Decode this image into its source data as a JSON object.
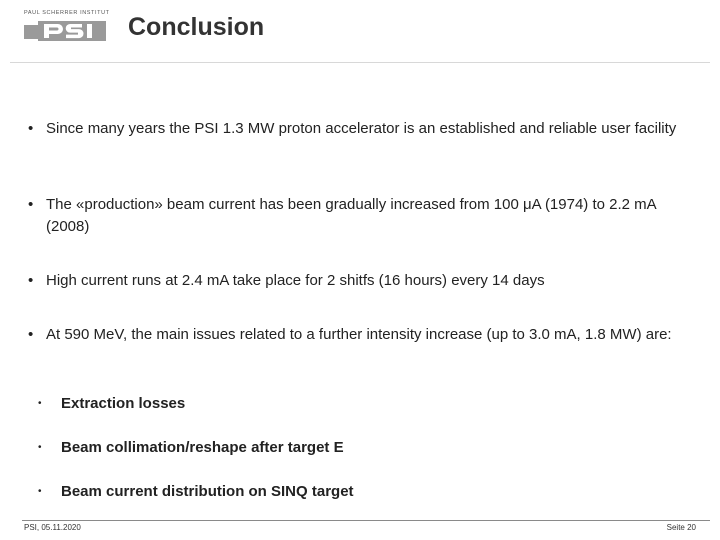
{
  "logo": {
    "caption": "PAUL SCHERRER INSTITUT",
    "mark": "PSI"
  },
  "title": "Conclusion",
  "bullets": [
    {
      "marker": "•",
      "text": "Since many years the PSI 1.3 MW proton accelerator is an established and reliable user facility"
    },
    {
      "marker": "•",
      "text": "The «production» beam current has been gradually increased from 100 μA (1974) to 2.2 mA (2008)"
    },
    {
      "marker": "•",
      "text": "High current runs at 2.4 mA take place for 2 shitfs (16 hours) every 14 days"
    },
    {
      "marker": "•",
      "text": "At 590 MeV, the main issues related to a further intensity increase (up to 3.0 mA, 1.8 MW) are:"
    }
  ],
  "sub_bullets": [
    {
      "marker": "•",
      "text": "Extraction losses"
    },
    {
      "marker": "•",
      "text": "Beam collimation/reshape after target E"
    },
    {
      "marker": "•",
      "text": "Beam current distribution on SINQ target"
    }
  ],
  "footer": {
    "left": "PSI, 05.11.2020",
    "right": "Seite 20"
  }
}
